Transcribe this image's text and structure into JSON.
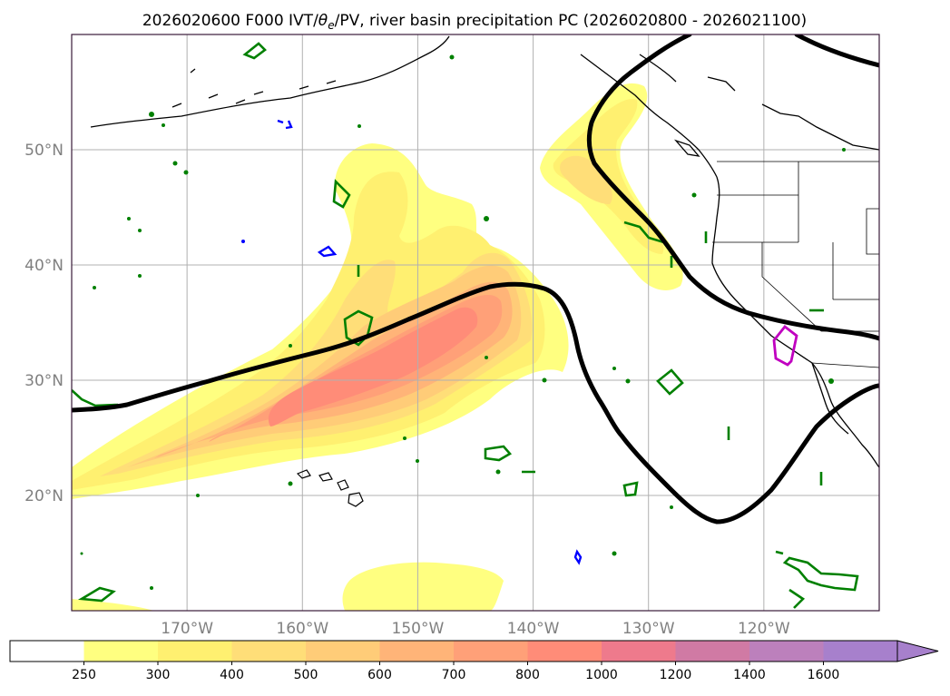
{
  "title": "2026020600 F000 IVT/θe/PV, river basin precipitation PC (2026020800 - 2026021100)",
  "title_parts": {
    "prefix": "2026020600 F000 IVT/",
    "theta": "θ",
    "theta_sub": "e",
    "suffix": "/PV, river basin precipitation PC (2026020800 - 2026021100)"
  },
  "map": {
    "lon_min": -180,
    "lon_max": -110,
    "lat_min": 10,
    "lat_max": 60,
    "lat_ticks": [
      {
        "value": 50,
        "label": "50°N"
      },
      {
        "value": 40,
        "label": "40°N"
      },
      {
        "value": 30,
        "label": "30°N"
      },
      {
        "value": 20,
        "label": "20°N"
      }
    ],
    "lon_ticks": [
      {
        "value": -170,
        "label": "170°W"
      },
      {
        "value": -160,
        "label": "160°W"
      },
      {
        "value": -150,
        "label": "150°W"
      },
      {
        "value": -140,
        "label": "140°W"
      },
      {
        "value": -130,
        "label": "130°W"
      },
      {
        "value": -120,
        "label": "120°W"
      }
    ],
    "gridline_color": "#b0b0b0",
    "frame_color": "#3a1a3a"
  },
  "colorbar": {
    "levels": [
      "250",
      "300",
      "400",
      "500",
      "600",
      "700",
      "800",
      "1000",
      "1200",
      "1400",
      "1600"
    ],
    "colors": [
      "#ffffff",
      "#ffff80",
      "#fff070",
      "#ffde78",
      "#ffcc78",
      "#ffb478",
      "#ffa078",
      "#ff8c78",
      "#ee7a8c",
      "#d07aa4",
      "#bc80bc",
      "#a780cc"
    ]
  },
  "ivt_colors": {
    "c250": "#ffff80",
    "c300": "#fff070",
    "c400": "#ffde78",
    "c500": "#ffcc78",
    "c600": "#ffb478",
    "c700": "#ffa078",
    "c800": "#ff8c78"
  },
  "contour_colors": {
    "theta_e": "#000000",
    "pv_green": "#008000",
    "pv_blue": "#0000ff",
    "precip": "#c000c0"
  }
}
